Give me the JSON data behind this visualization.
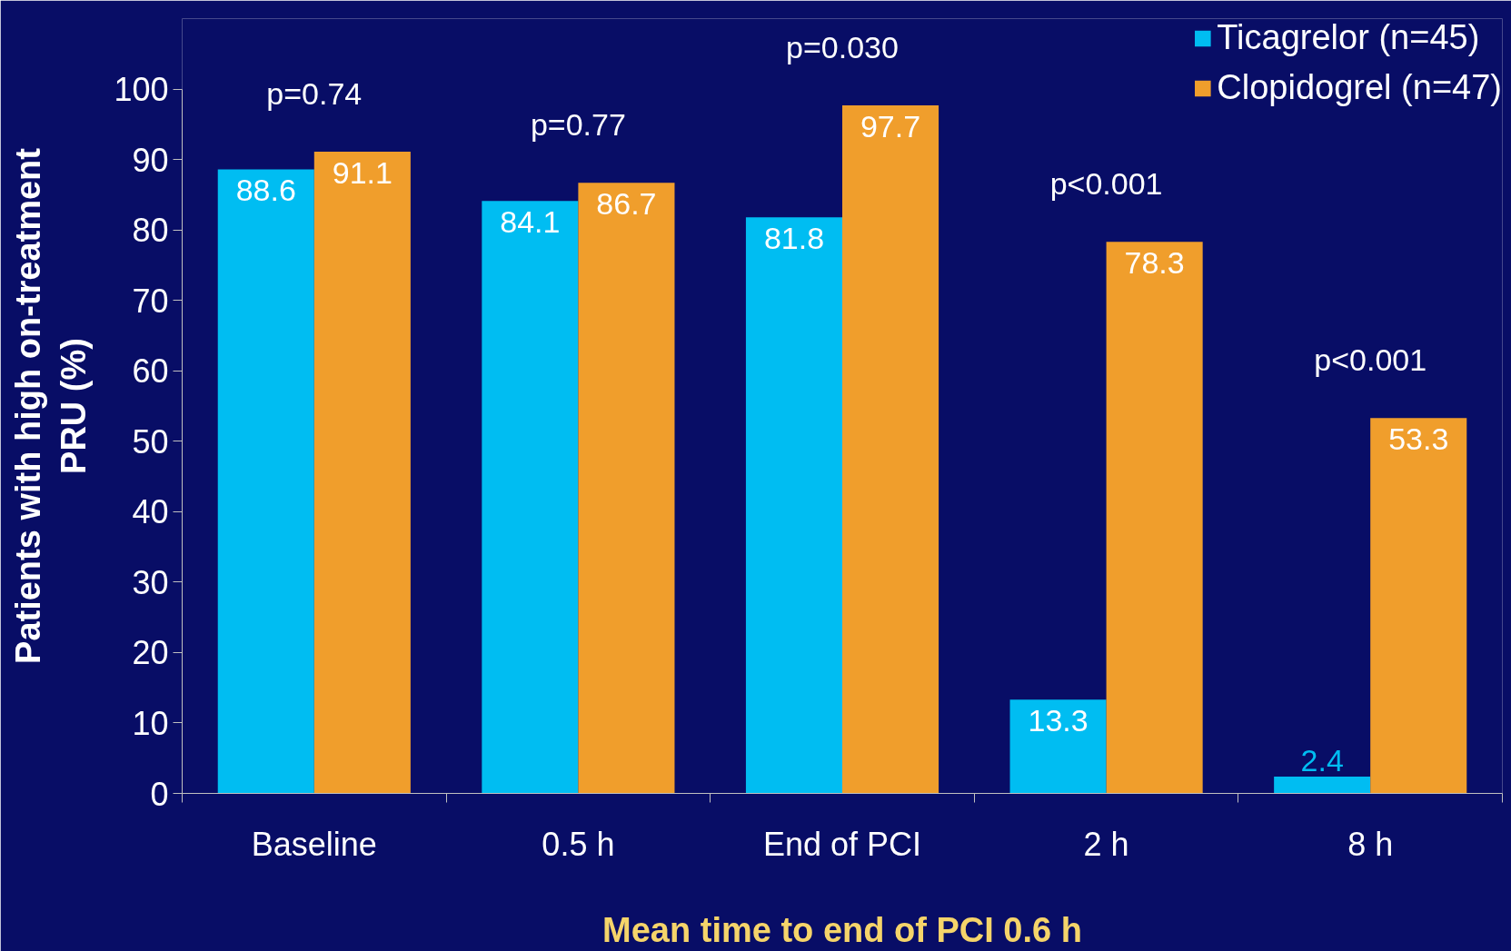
{
  "chart_data": {
    "type": "bar",
    "categories": [
      "Baseline",
      "0.5 h",
      "End of PCI",
      "2 h",
      "8 h"
    ],
    "series": [
      {
        "name": "Ticagrelor (n=45)",
        "color": "#00bdf2",
        "values": [
          88.6,
          84.1,
          81.8,
          13.3,
          2.4
        ]
      },
      {
        "name": "Clopidogrel (n=47)",
        "color": "#f09e2c",
        "values": [
          91.1,
          86.7,
          97.7,
          78.3,
          53.3
        ]
      }
    ],
    "ylim": [
      0,
      100
    ],
    "yticks": [
      0,
      10,
      20,
      30,
      40,
      50,
      60,
      70,
      80,
      90,
      100
    ],
    "ylabel": "Patients with high on-treatment\nPRU (%)",
    "xlabel": "Mean time to end of PCI 0.6 h",
    "annotations": [
      "p=0.74",
      "p=0.77",
      "p=0.030",
      "p<0.001",
      "p<0.001"
    ],
    "data_labels": true,
    "legend": "top right",
    "grid": false
  }
}
